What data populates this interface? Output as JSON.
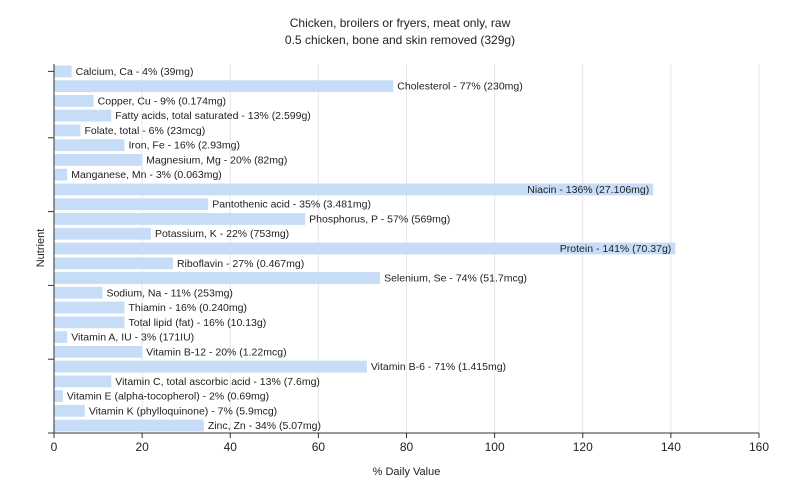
{
  "chart_data": {
    "type": "bar",
    "orientation": "horizontal",
    "title": "Chicken, broilers or fryers, meat only, raw",
    "subtitle": "0.5 chicken, bone and skin removed (329g)",
    "xlabel": "% Daily Value",
    "ylabel": "Nutrient",
    "xlim": [
      0,
      160
    ],
    "xticks": [
      0,
      20,
      40,
      60,
      80,
      100,
      120,
      140,
      160
    ],
    "grid": true,
    "bar_color": "#c6dcf7",
    "bars": [
      {
        "label": "Calcium, Ca - 4% (39mg)",
        "value": 4
      },
      {
        "label": "Cholesterol - 77% (230mg)",
        "value": 77
      },
      {
        "label": "Copper, Cu - 9% (0.174mg)",
        "value": 9
      },
      {
        "label": "Fatty acids, total saturated - 13% (2.599g)",
        "value": 13
      },
      {
        "label": "Folate, total - 6% (23mcg)",
        "value": 6
      },
      {
        "label": "Iron, Fe - 16% (2.93mg)",
        "value": 16
      },
      {
        "label": "Magnesium, Mg - 20% (82mg)",
        "value": 20
      },
      {
        "label": "Manganese, Mn - 3% (0.063mg)",
        "value": 3
      },
      {
        "label": "Niacin - 136% (27.106mg)",
        "value": 136
      },
      {
        "label": "Pantothenic acid - 35% (3.481mg)",
        "value": 35
      },
      {
        "label": "Phosphorus, P - 57% (569mg)",
        "value": 57
      },
      {
        "label": "Potassium, K - 22% (753mg)",
        "value": 22
      },
      {
        "label": "Protein - 141% (70.37g)",
        "value": 141
      },
      {
        "label": "Riboflavin - 27% (0.467mg)",
        "value": 27
      },
      {
        "label": "Selenium, Se - 74% (51.7mcg)",
        "value": 74
      },
      {
        "label": "Sodium, Na - 11% (253mg)",
        "value": 11
      },
      {
        "label": "Thiamin - 16% (0.240mg)",
        "value": 16
      },
      {
        "label": "Total lipid (fat) - 16% (10.13g)",
        "value": 16
      },
      {
        "label": "Vitamin A, IU - 3% (171IU)",
        "value": 3
      },
      {
        "label": "Vitamin B-12 - 20% (1.22mcg)",
        "value": 20
      },
      {
        "label": "Vitamin B-6 - 71% (1.415mg)",
        "value": 71
      },
      {
        "label": "Vitamin C, total ascorbic acid - 13% (7.6mg)",
        "value": 13
      },
      {
        "label": "Vitamin E (alpha-tocopherol) - 2% (0.69mg)",
        "value": 2
      },
      {
        "label": "Vitamin K (phylloquinone) - 7% (5.9mcg)",
        "value": 7
      },
      {
        "label": "Zinc, Zn - 34% (5.07mg)",
        "value": 34
      }
    ]
  }
}
